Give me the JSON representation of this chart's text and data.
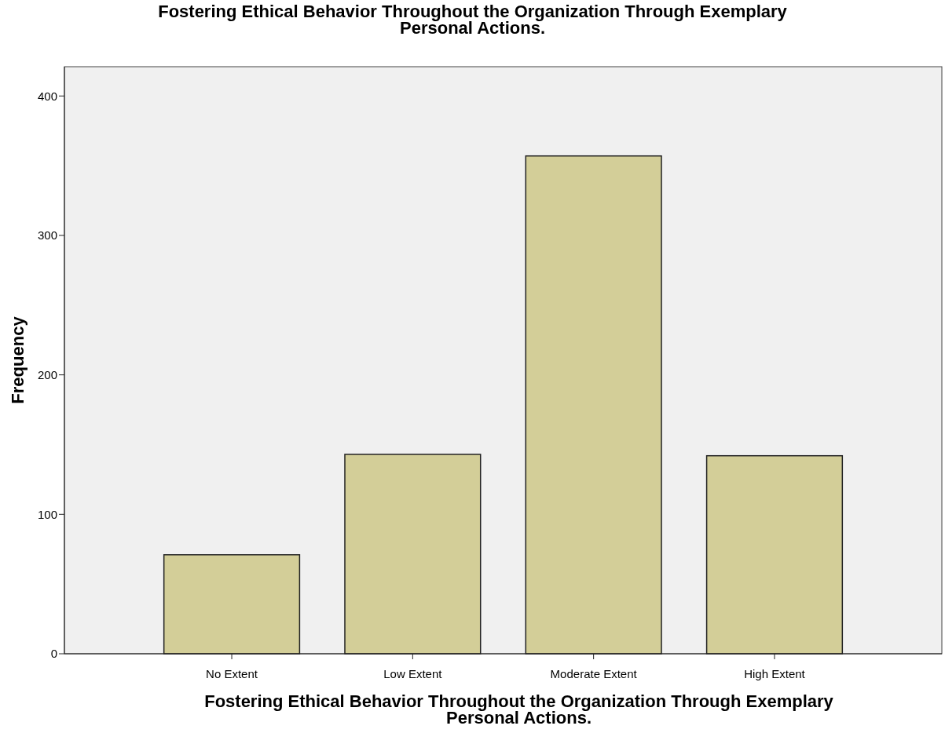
{
  "chart_data": {
    "type": "bar",
    "title": "Fostering Ethical Behavior Throughout the Organization Through Exemplary Personal Actions.",
    "xlabel": "Fostering Ethical Behavior Throughout the Organization Through Exemplary Personal Actions.",
    "ylabel": "Frequency",
    "categories": [
      "No Extent",
      "Low Extent",
      "Moderate Extent",
      "High Extent"
    ],
    "values": [
      71,
      143,
      357,
      142
    ],
    "color": "#d3ce98",
    "ylim": [
      0,
      421
    ],
    "yticks": [
      0,
      100,
      200,
      300,
      400
    ],
    "grid": false
  }
}
